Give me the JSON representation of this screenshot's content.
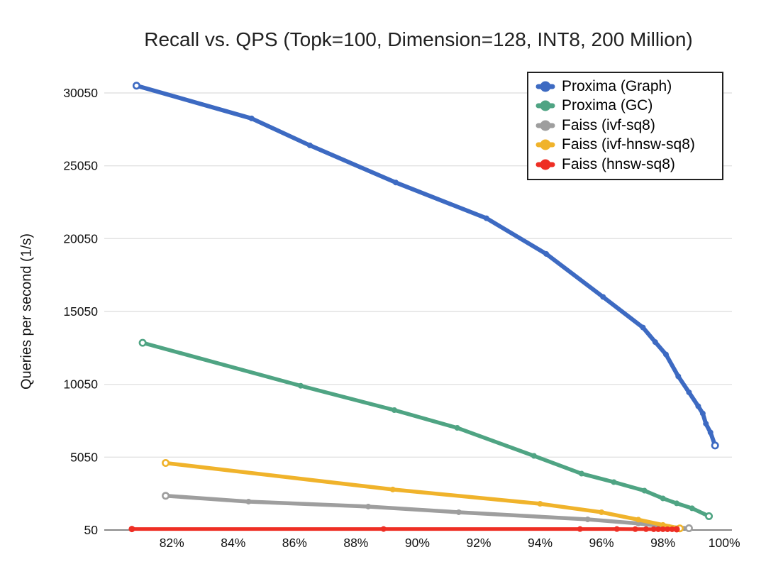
{
  "chart_data": {
    "type": "line",
    "title": "Recall vs. QPS (Topk=100, Dimension=128, INT8, 200 Million)",
    "xlabel": "",
    "ylabel": "Queries per second (1/s)",
    "x_unit": "percent-recall",
    "xlim": [
      79.8,
      100.25
    ],
    "ylim": [
      50,
      30050
    ],
    "x_ticks": [
      82,
      84,
      86,
      88,
      90,
      92,
      94,
      96,
      98,
      100
    ],
    "x_tick_labels": [
      "82%",
      "84%",
      "86%",
      "88%",
      "90%",
      "92%",
      "94%",
      "96%",
      "98%",
      "100%"
    ],
    "y_ticks": [
      50,
      5050,
      10050,
      15050,
      20050,
      25050,
      30050
    ],
    "y_tick_labels": [
      "50",
      "5050",
      "10050",
      "15050",
      "20050",
      "25050",
      "30050"
    ],
    "grid": "horizontal",
    "legend_position": "top-right",
    "colors": {
      "grid_line": "#e2e2e2",
      "axis_line": "#616161",
      "text": "#111111"
    },
    "series": [
      {
        "name": "Proxima (Graph)",
        "color": "#3D6AC2",
        "line_width": 6,
        "open_ends": true,
        "points": [
          [
            80.85,
            30550
          ],
          [
            84.6,
            28300
          ],
          [
            86.5,
            26450
          ],
          [
            89.3,
            23900
          ],
          [
            92.25,
            21450
          ],
          [
            94.2,
            19000
          ],
          [
            96.05,
            16050
          ],
          [
            97.35,
            13950
          ],
          [
            97.75,
            12950
          ],
          [
            98.1,
            12100
          ],
          [
            98.5,
            10600
          ],
          [
            98.85,
            9500
          ],
          [
            99.15,
            8550
          ],
          [
            99.3,
            8050
          ],
          [
            99.4,
            7350
          ],
          [
            99.55,
            6750
          ],
          [
            99.7,
            5850
          ]
        ]
      },
      {
        "name": "Proxima (GC)",
        "color": "#4FA483",
        "line_width": 5.5,
        "open_ends": true,
        "points": [
          [
            81.05,
            12900
          ],
          [
            86.2,
            9950
          ],
          [
            89.25,
            8280
          ],
          [
            91.3,
            7060
          ],
          [
            93.8,
            5140
          ],
          [
            95.35,
            3920
          ],
          [
            96.4,
            3340
          ],
          [
            97.4,
            2750
          ],
          [
            98.0,
            2220
          ],
          [
            98.45,
            1880
          ],
          [
            98.95,
            1540
          ],
          [
            99.5,
            1000
          ]
        ]
      },
      {
        "name": "Faiss (ivf-sq8)",
        "color": "#9E9E9E",
        "line_width": 5.5,
        "open_ends": true,
        "points": [
          [
            81.8,
            2400
          ],
          [
            84.5,
            2000
          ],
          [
            88.4,
            1660
          ],
          [
            91.35,
            1270
          ],
          [
            95.55,
            780
          ],
          [
            97.2,
            500
          ],
          [
            98.2,
            260
          ],
          [
            98.85,
            170
          ]
        ]
      },
      {
        "name": "Faiss (ivf-hnsw-sq8)",
        "color": "#F0B32B",
        "line_width": 5.5,
        "open_ends": true,
        "points": [
          [
            81.8,
            4650
          ],
          [
            89.2,
            2830
          ],
          [
            94.0,
            1850
          ],
          [
            96.0,
            1270
          ],
          [
            97.2,
            760
          ],
          [
            98.0,
            400
          ],
          [
            98.55,
            160
          ]
        ]
      },
      {
        "name": "Faiss (hnsw-sq8)",
        "color": "#EE2E24",
        "line_width": 5,
        "open_ends": false,
        "points": [
          [
            80.7,
            120
          ],
          [
            88.9,
            120
          ],
          [
            95.3,
            115
          ],
          [
            96.5,
            115
          ],
          [
            97.1,
            110
          ],
          [
            97.45,
            110
          ],
          [
            97.7,
            105
          ],
          [
            97.85,
            105
          ],
          [
            98.0,
            105
          ],
          [
            98.15,
            100
          ],
          [
            98.3,
            100
          ],
          [
            98.45,
            100
          ]
        ]
      }
    ]
  }
}
